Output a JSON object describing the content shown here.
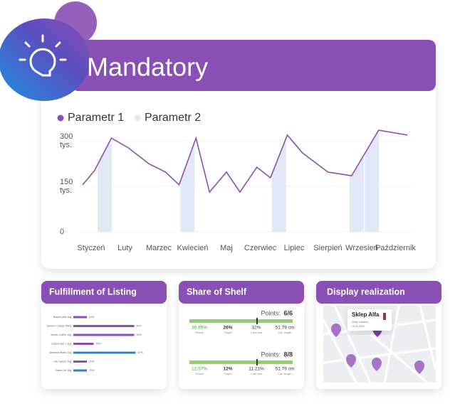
{
  "header": {
    "title": "Mandatory"
  },
  "chart_data": {
    "type": "line",
    "categories": [
      "Styczeń",
      "Luty",
      "Marzec",
      "Kwiecień",
      "Maj",
      "Czerwiec",
      "Lipiec",
      "Sierpień",
      "Wrzesień",
      "Październik"
    ],
    "series": [
      {
        "name": "Parametr 1",
        "color": "#8a4fb5",
        "type": "line",
        "x": [
          -0.25,
          0.1,
          0.6,
          1.1,
          1.7,
          2.2,
          2.6,
          3.1,
          3.5,
          4.0,
          4.4,
          4.9,
          5.3,
          5.8,
          6.25,
          7.0,
          7.7,
          8.5,
          9.35
        ],
        "values": [
          155,
          202,
          309,
          277,
          225,
          197,
          155,
          309,
          131,
          197,
          131,
          213,
          178,
          319,
          260,
          197,
          185,
          335,
          319
        ]
      },
      {
        "name": "Parametr 2",
        "color": "#e2e8f5",
        "type": "bar",
        "x": [
          0.4,
          2.85,
          5.55,
          7.85,
          8.3
        ],
        "values": [
          290,
          300,
          310,
          260,
          330
        ]
      }
    ],
    "ylim": [
      0,
      340
    ],
    "yticks": [
      0,
      {
        "value": 150,
        "label": "150 tys."
      },
      {
        "value": 300,
        "label": "300 tys."
      }
    ],
    "grid": true
  },
  "listing": {
    "title": "Fulfillment of Listing",
    "labels": [
      "Brands Alfa 1kg",
      "Danone Classic 500g",
      "Bonitu Coffee 1kg",
      "Classic Bar 1 1kg",
      "National Water 1kg",
      "Lulu Spices 1kg",
      "Sweet Jet 1kg"
    ],
    "values": [
      20,
      90,
      90,
      30,
      92,
      20,
      20
    ],
    "value_labels": [
      "20%",
      "90%",
      "90%",
      "30%",
      "92%",
      "20%",
      "20%"
    ],
    "colors": [
      "#8a4fb5",
      "#8a4fb5",
      "#8a4fb5",
      "#8a4fb5",
      "#2f7fd0",
      "#8a4fb5",
      "#2f7fd0"
    ],
    "xlim": [
      0,
      100
    ]
  },
  "shelf": {
    "title": "Share of Shelf",
    "blocks": [
      {
        "points_label": "Points:",
        "points": "6/6",
        "metrics": [
          {
            "value": "36.65%",
            "label": "Result"
          },
          {
            "value": "26%",
            "label": "Target"
          },
          {
            "value": "32%",
            "label": "Last visit"
          },
          {
            "value": "51.79 cm",
            "label": "Cat. length"
          }
        ]
      },
      {
        "points_label": "Points:",
        "points": "8/8",
        "metrics": [
          {
            "value": "12.57%",
            "label": "Result"
          },
          {
            "value": "12%",
            "label": "Target"
          },
          {
            "value": "11.21%",
            "label": "Last visit"
          },
          {
            "value": "51.79 cm",
            "label": "Cat. length"
          }
        ]
      }
    ]
  },
  "display": {
    "title": "Display realization",
    "popup": {
      "name": "Sklep Alfa",
      "subtitle": "Sklep Lokalnej",
      "date": "10.03.2024"
    }
  }
}
